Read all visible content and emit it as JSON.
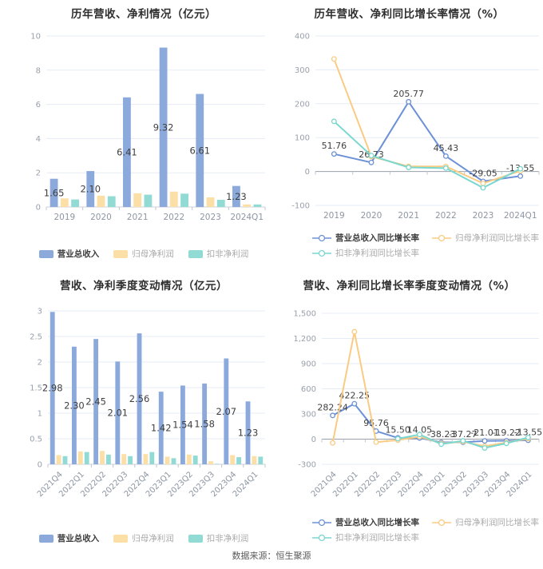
{
  "footer": {
    "source": "数据来源：恒生聚源"
  },
  "colors": {
    "bar_revenue": "#8CA9DC",
    "bar_net_profit": "#FBDFA6",
    "bar_non_gaap": "#92DBD5",
    "line_revenue": "#6C91D7",
    "line_net_profit": "#FACB83",
    "line_non_gaap": "#79D7CF",
    "grid": "#E6ECF5",
    "axis_line": "#CDD2DA",
    "zero_line": "#9AA1AC",
    "tick_text": "#98A0AC",
    "value_label": "#3F3F3F"
  },
  "chart_data": [
    {
      "id": "annual-bar",
      "type": "bar",
      "title": "历年营收、净利情况（亿元）",
      "categories": [
        "2019",
        "2020",
        "2021",
        "2022",
        "2023",
        "2024Q1"
      ],
      "ylim": [
        0,
        10
      ],
      "ytick_values": [
        10,
        8,
        6,
        4,
        2,
        0
      ],
      "ytick_labels": [
        "10",
        "8",
        "6",
        "4",
        "2",
        "0"
      ],
      "series": [
        {
          "name": "营业总收入",
          "color": "#8CA9DC",
          "values": [
            1.65,
            2.1,
            6.41,
            9.32,
            6.61,
            1.23
          ],
          "labels": [
            "1.65",
            "2.10",
            "6.41",
            "9.32",
            "6.61",
            "1.23"
          ]
        },
        {
          "name": "归母净利润",
          "color": "#FBDFA6",
          "values": [
            0.5,
            0.66,
            0.8,
            0.9,
            0.56,
            0.15
          ]
        },
        {
          "name": "扣非净利润",
          "color": "#92DBD5",
          "values": [
            0.44,
            0.63,
            0.72,
            0.78,
            0.42,
            0.15
          ]
        }
      ]
    },
    {
      "id": "annual-growth",
      "type": "line",
      "title": "历年营收、净利同比增长率情况（%）",
      "categories": [
        "2019",
        "2020",
        "2021",
        "2022",
        "2023",
        "2024Q1"
      ],
      "ylim": [
        -100,
        400
      ],
      "ytick_values": [
        400,
        300,
        200,
        100,
        0,
        -100
      ],
      "ytick_labels": [
        "400",
        "300",
        "200",
        "100",
        "0",
        "-100"
      ],
      "series": [
        {
          "name": "营业总收入同比增长率",
          "color": "#6C91D7",
          "values": [
            51.76,
            26.73,
            205.77,
            45.43,
            -29.05,
            -13.55
          ],
          "labels": [
            "51.76",
            "26.73",
            "205.77",
            "45.43",
            "-29.05",
            "-13.55"
          ]
        },
        {
          "name": "归母净利润同比增长率",
          "color": "#FACB83",
          "values": [
            332,
            44,
            15,
            15,
            -35,
            2
          ]
        },
        {
          "name": "扣非净利润同比增长率",
          "color": "#79D7CF",
          "values": [
            148,
            47,
            12,
            10,
            -48,
            8
          ]
        }
      ]
    },
    {
      "id": "quarterly-bar",
      "type": "bar",
      "title": "营收、净利季度变动情况（亿元）",
      "categories": [
        "2021Q4",
        "2022Q1",
        "2022Q2",
        "2022Q3",
        "2022Q4",
        "2023Q1",
        "2023Q2",
        "2023Q3",
        "2023Q4",
        "2024Q1"
      ],
      "ylim": [
        0,
        3
      ],
      "ytick_values": [
        3,
        2.5,
        2,
        1.5,
        1,
        0.5,
        0
      ],
      "ytick_labels": [
        "3",
        "2.5",
        "2",
        "1.5",
        "1",
        "0.5",
        "0"
      ],
      "series": [
        {
          "name": "营业总收入",
          "color": "#8CA9DC",
          "values": [
            2.98,
            2.3,
            2.45,
            2.01,
            2.56,
            1.42,
            1.54,
            1.58,
            2.07,
            1.23
          ],
          "labels": [
            "2.98",
            "2.30",
            "2.45",
            "2.01",
            "2.56",
            "1.42",
            "1.54",
            "1.58",
            "2.07",
            "1.23"
          ]
        },
        {
          "name": "归母净利润",
          "color": "#FBDFA6",
          "values": [
            0.18,
            0.25,
            0.26,
            0.2,
            0.2,
            0.15,
            0.19,
            0.06,
            0.18,
            0.16
          ]
        },
        {
          "name": "扣非净利润",
          "color": "#92DBD5",
          "values": [
            0.16,
            0.24,
            0.19,
            0.16,
            0.24,
            0.12,
            0.17,
            0.01,
            0.14,
            0.15
          ]
        }
      ]
    },
    {
      "id": "quarterly-growth",
      "type": "line",
      "title": "营收、净利同比增长率季度变动情况（%）",
      "categories": [
        "2021Q4",
        "2022Q1",
        "2022Q2",
        "2022Q3",
        "2022Q4",
        "2023Q1",
        "2023Q2",
        "2023Q3",
        "2023Q4",
        "2024Q1"
      ],
      "ylim": [
        -300,
        1500
      ],
      "ytick_values": [
        1500,
        1200,
        900,
        600,
        300,
        0,
        -300
      ],
      "ytick_labels": [
        "1,500",
        "1,200",
        "900",
        "600",
        "300",
        "0",
        "-300"
      ],
      "series": [
        {
          "name": "营业总收入同比增长率",
          "color": "#6C91D7",
          "values": [
            282.24,
            422.25,
            95.76,
            15.5,
            14.05,
            -38.23,
            -37.27,
            -21.01,
            -19.22,
            -13.55
          ],
          "labels": [
            "282.24",
            "422.25",
            "95.76",
            "15.50",
            "14.05",
            "-38.23",
            "-37.27",
            "-21.01",
            "-19.22",
            "-13.55"
          ]
        },
        {
          "name": "归母净利润同比增长率",
          "color": "#FACB83",
          "values": [
            -45,
            1280,
            -35,
            -12,
            30,
            -50,
            -30,
            -85,
            -40,
            5
          ]
        },
        {
          "name": "扣非净利润同比增长率",
          "color": "#79D7CF",
          "values": [
            null,
            null,
            null,
            5,
            55,
            -60,
            -20,
            -105,
            -50,
            20
          ]
        }
      ]
    }
  ]
}
